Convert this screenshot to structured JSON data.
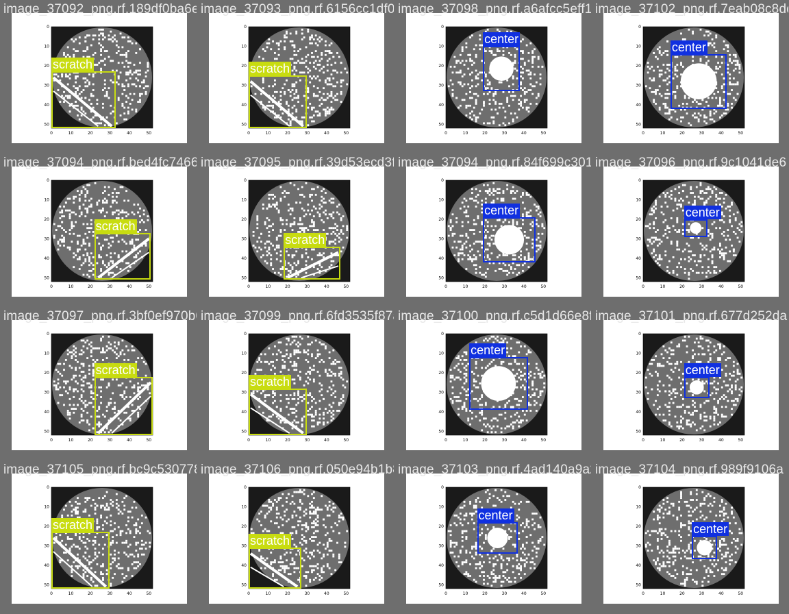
{
  "colors": {
    "scratch": "#c8dc10",
    "center": "#1030e0",
    "background": "#6e6e6e"
  },
  "tiles": [
    {
      "filename": "image_37092_png.rf.189df0ba6e01d3c12103",
      "label": "scratch",
      "cls": "scratch",
      "wafer": 0
    },
    {
      "filename": "image_37093_png.rf.6156cc1df0d99b5f6c8d",
      "label": "scratch",
      "cls": "scratch",
      "wafer": 1
    },
    {
      "filename": "image_37098_png.rf.a6afcc5eff1449ad5022",
      "label": "center",
      "cls": "center",
      "wafer": 2
    },
    {
      "filename": "image_37102_png.rf.7eab08c8dd",
      "label": "center",
      "cls": "center",
      "wafer": 3
    },
    {
      "filename": "image_37094_png.rf.bed4fc7466f04a7c2047",
      "label": "scratch",
      "cls": "scratch",
      "wafer": 4
    },
    {
      "filename": "image_37095_png.rf.39d53ecd3f1a2e90b4",
      "label": "scratch",
      "cls": "scratch",
      "wafer": 5
    },
    {
      "filename": "image_37094_png.rf.84f699c301f8a5f1b027",
      "label": "center",
      "cls": "center",
      "wafer": 6
    },
    {
      "filename": "image_37096_png.rf.9c1041de6",
      "label": "center",
      "cls": "center",
      "wafer": 7
    },
    {
      "filename": "image_37097_png.rf.3bf0ef970b0d4eb17444",
      "label": "scratch",
      "cls": "scratch",
      "wafer": 8
    },
    {
      "filename": "image_37099_png.rf.6fd3535f87a0a677d008",
      "label": "scratch",
      "cls": "scratch",
      "wafer": 9
    },
    {
      "filename": "image_37100_png.rf.c5d1d66e8fdb0fe36028",
      "label": "center",
      "cls": "center",
      "wafer": 10
    },
    {
      "filename": "image_37101_png.rf.677d252da",
      "label": "center",
      "cls": "center",
      "wafer": 11
    },
    {
      "filename": "image_37105_png.rf.bc9c530778335e1b54f2",
      "label": "scratch",
      "cls": "scratch",
      "wafer": 12
    },
    {
      "filename": "image_37106_png.rf.050e94b1b8758a728b3",
      "label": "scratch",
      "cls": "scratch",
      "wafer": 13
    },
    {
      "filename": "image_37103_png.rf.4ad140a9a2b7024c1080",
      "label": "center",
      "cls": "center",
      "wafer": 14
    },
    {
      "filename": "image_37104_png.rf.989f9106a",
      "label": "center",
      "cls": "center",
      "wafer": 15
    }
  ],
  "axis": {
    "xticks": [
      "0",
      "10",
      "20",
      "30",
      "40",
      "50"
    ],
    "yticks": [
      "0",
      "10",
      "20",
      "30",
      "40",
      "50"
    ]
  }
}
